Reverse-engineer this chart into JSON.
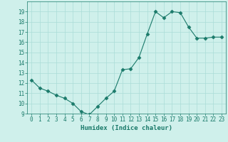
{
  "x": [
    0,
    1,
    2,
    3,
    4,
    5,
    6,
    7,
    8,
    9,
    10,
    11,
    12,
    13,
    14,
    15,
    16,
    17,
    18,
    19,
    20,
    21,
    22,
    23
  ],
  "y": [
    12.3,
    11.5,
    11.2,
    10.8,
    10.5,
    10.0,
    9.2,
    8.9,
    9.7,
    10.5,
    11.2,
    13.3,
    13.4,
    14.5,
    16.8,
    19.0,
    18.4,
    19.0,
    18.9,
    17.5,
    16.4,
    16.4,
    16.5,
    16.5
  ],
  "line_color": "#1a7a6a",
  "marker": "D",
  "marker_size": 2.5,
  "bg_color": "#cff0eb",
  "grid_color": "#aaddd7",
  "xlabel": "Humidex (Indice chaleur)",
  "ylim": [
    9,
    20
  ],
  "xlim": [
    -0.5,
    23.5
  ],
  "yticks": [
    9,
    10,
    11,
    12,
    13,
    14,
    15,
    16,
    17,
    18,
    19
  ],
  "xticks": [
    0,
    1,
    2,
    3,
    4,
    5,
    6,
    7,
    8,
    9,
    10,
    11,
    12,
    13,
    14,
    15,
    16,
    17,
    18,
    19,
    20,
    21,
    22,
    23
  ],
  "tick_fontsize": 5.5,
  "xlabel_fontsize": 6.5
}
